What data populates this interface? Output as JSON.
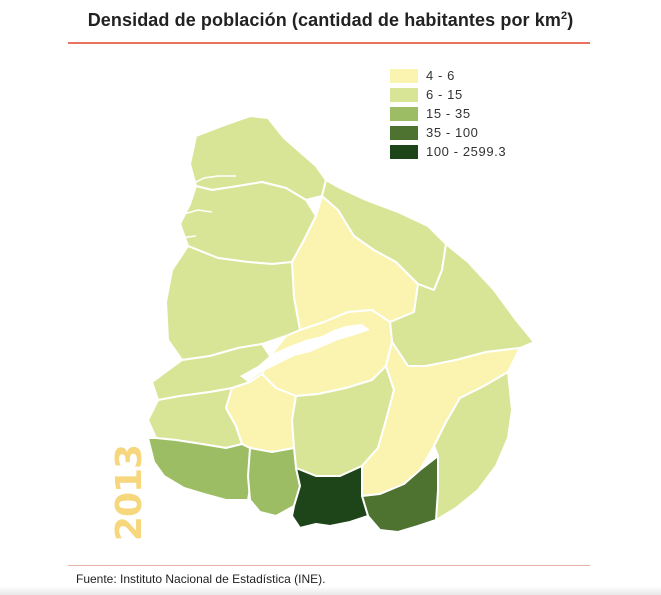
{
  "title": {
    "main": "Densidad de población (cantidad de habitantes por km",
    "superscript": "2",
    "close": ")"
  },
  "legend": {
    "items": [
      {
        "label": "4 - 6",
        "color": "#fbf4b1"
      },
      {
        "label": "6 - 15",
        "color": "#d9e596"
      },
      {
        "label": "15 - 35",
        "color": "#9cbd63"
      },
      {
        "label": "35 - 100",
        "color": "#4e7230"
      },
      {
        "label": "100 - 2599.3",
        "color": "#1e4519"
      }
    ]
  },
  "year": "2013",
  "source": "Fuente: Instituto Nacional de Estadística (INE).",
  "colors": {
    "accent_rule": "#e8735f",
    "year_text": "#f6d77d",
    "border": "#ffffff"
  }
}
